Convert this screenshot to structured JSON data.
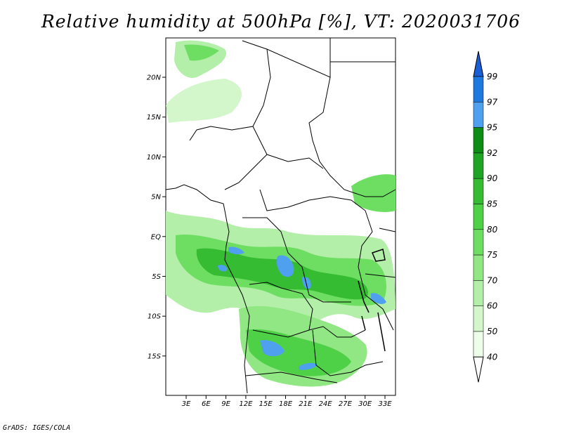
{
  "title": "Relative humidity at 500hPa [%], VT: 2020031706",
  "credit": "GrADS: IGES/COLA",
  "map": {
    "lat_labels": [
      "20N",
      "15N",
      "10N",
      "5N",
      "EQ",
      "5S",
      "10S",
      "15S"
    ],
    "lon_labels": [
      "3E",
      "6E",
      "9E",
      "12E",
      "15E",
      "18E",
      "21E",
      "24E",
      "27E",
      "30E",
      "33E"
    ],
    "lat_range": [
      -20,
      25
    ],
    "lon_range": [
      0,
      35
    ]
  },
  "colorbar": {
    "levels": [
      "99",
      "97",
      "95",
      "92",
      "90",
      "85",
      "80",
      "75",
      "70",
      "60",
      "50",
      "40"
    ],
    "colors": [
      "#1a5fd6",
      "#1f78e0",
      "#4fa0ef",
      "#0e8c16",
      "#1fa426",
      "#35bc33",
      "#4ed146",
      "#6ede62",
      "#90e783",
      "#b3efa8",
      "#d3f6cb",
      "#edfdea"
    ]
  }
}
